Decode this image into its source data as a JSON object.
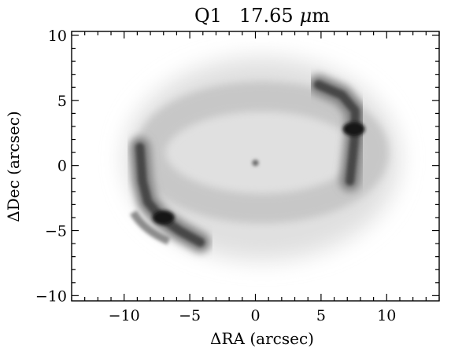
{
  "chart_data": {
    "type": "heatmap",
    "title_prefix": "Q1",
    "title_value": "17.65",
    "title_unit_symbol": "μ",
    "title_unit_rest": "m",
    "xlabel": "ΔRA (arcsec)",
    "ylabel": "ΔDec (arcsec)",
    "xlim": [
      -14,
      14
    ],
    "ylim": [
      -10.4,
      10.3
    ],
    "x_ticks": [
      -10,
      -5,
      0,
      5,
      10
    ],
    "y_ticks": [
      -10,
      -5,
      0,
      5,
      10
    ],
    "x_tick_labels": [
      "−10",
      "−5",
      "0",
      "5",
      "10"
    ],
    "y_tick_labels": [
      "−10",
      "−5",
      "0",
      "5",
      "10"
    ],
    "x_minor_step": 1,
    "y_minor_step": 1,
    "colormap": "inverted grayscale",
    "grid": false,
    "features": [
      {
        "feature": "ring",
        "center": [
          0.5,
          1.0
        ],
        "radius_x": 8.5,
        "radius_y": 4.3,
        "intensity": 0.22
      },
      {
        "feature": "halo",
        "center": [
          0.5,
          0.5
        ],
        "radius_x": 10.5,
        "radius_y": 7.8,
        "intensity": 0.12
      },
      {
        "feature": "east-lobe-arc",
        "x_range": [
          -9,
          -3
        ],
        "y_range": [
          -6,
          1.5
        ],
        "peak": [
          -7,
          -4
        ],
        "intensity": 0.9
      },
      {
        "feature": "west-lobe-arc",
        "x_range": [
          5.5,
          9
        ],
        "y_range": [
          -2,
          6.5
        ],
        "peak": [
          7.5,
          2.8
        ],
        "intensity": 0.9
      },
      {
        "feature": "central-star",
        "center": [
          0,
          0.2
        ],
        "intensity": 0.6
      }
    ]
  }
}
